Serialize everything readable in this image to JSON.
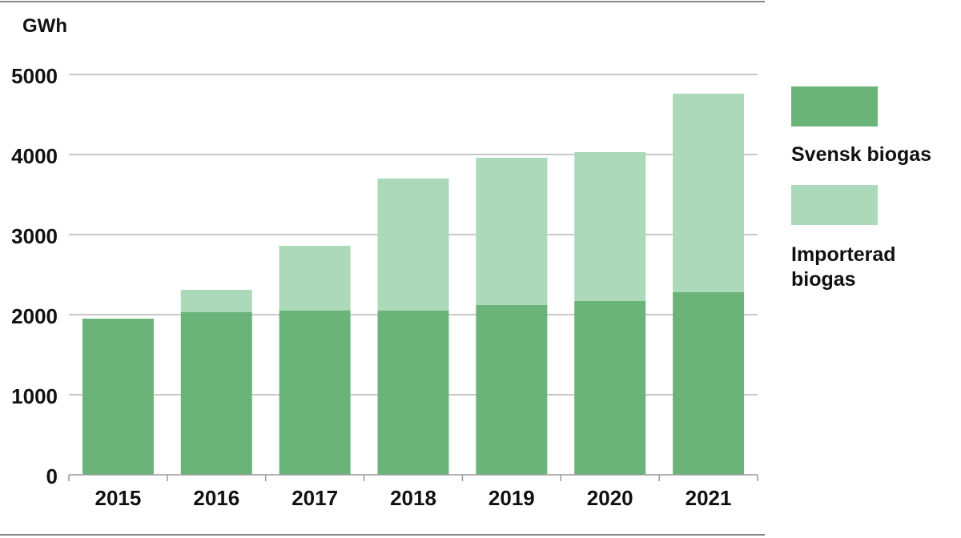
{
  "chart_data": {
    "type": "bar",
    "stacked": true,
    "unit_label": "GWh",
    "categories": [
      "2015",
      "2016",
      "2017",
      "2018",
      "2019",
      "2020",
      "2021"
    ],
    "series": [
      {
        "name": "Svensk biogas",
        "color": "#6ab47a",
        "values": [
          1950,
          2030,
          2050,
          2050,
          2120,
          2170,
          2280
        ]
      },
      {
        "name": "Importerad biogas",
        "color": "#acd9b9",
        "values": [
          0,
          280,
          810,
          1650,
          1840,
          1860,
          2480
        ]
      }
    ],
    "ylim": [
      0,
      5000
    ],
    "yticks": [
      "0",
      "1000",
      "2000",
      "3000",
      "4000",
      "5000"
    ],
    "grid": true,
    "legend_position": "right"
  },
  "legend": {
    "svensk_label": "Svensk biogas",
    "importerad_label": "Importerad biogas"
  }
}
